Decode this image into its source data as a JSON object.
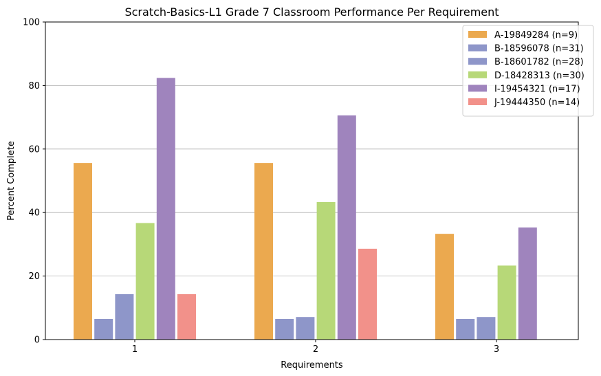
{
  "chart_data": {
    "type": "bar",
    "title": "Scratch-Basics-L1 Grade 7 Classroom Performance Per Requirement",
    "xlabel": "Requirements",
    "ylabel": "Percent Complete",
    "ylim": [
      0,
      100
    ],
    "yticks": [
      0,
      20,
      40,
      60,
      80,
      100
    ],
    "grid": "horizontal",
    "legend_position": "top-right",
    "categories": [
      "1",
      "2",
      "3"
    ],
    "series": [
      {
        "name": "A-19849284 (n=9)",
        "color": "#EBA94F",
        "values": [
          55.6,
          55.6,
          33.3
        ]
      },
      {
        "name": "B-18596078 (n=31)",
        "color": "#8E96C9",
        "values": [
          6.5,
          6.5,
          6.5
        ]
      },
      {
        "name": "B-18601782 (n=28)",
        "color": "#8E96C9",
        "values": [
          14.3,
          7.1,
          7.1
        ]
      },
      {
        "name": "D-18428313 (n=30)",
        "color": "#B7D878",
        "values": [
          36.7,
          43.3,
          23.3
        ]
      },
      {
        "name": "I-19454321 (n=17)",
        "color": "#9F84BD",
        "values": [
          82.4,
          70.6,
          35.3
        ]
      },
      {
        "name": "J-19444350 (n=14)",
        "color": "#F2918A",
        "values": [
          14.3,
          28.6,
          0
        ]
      }
    ]
  }
}
